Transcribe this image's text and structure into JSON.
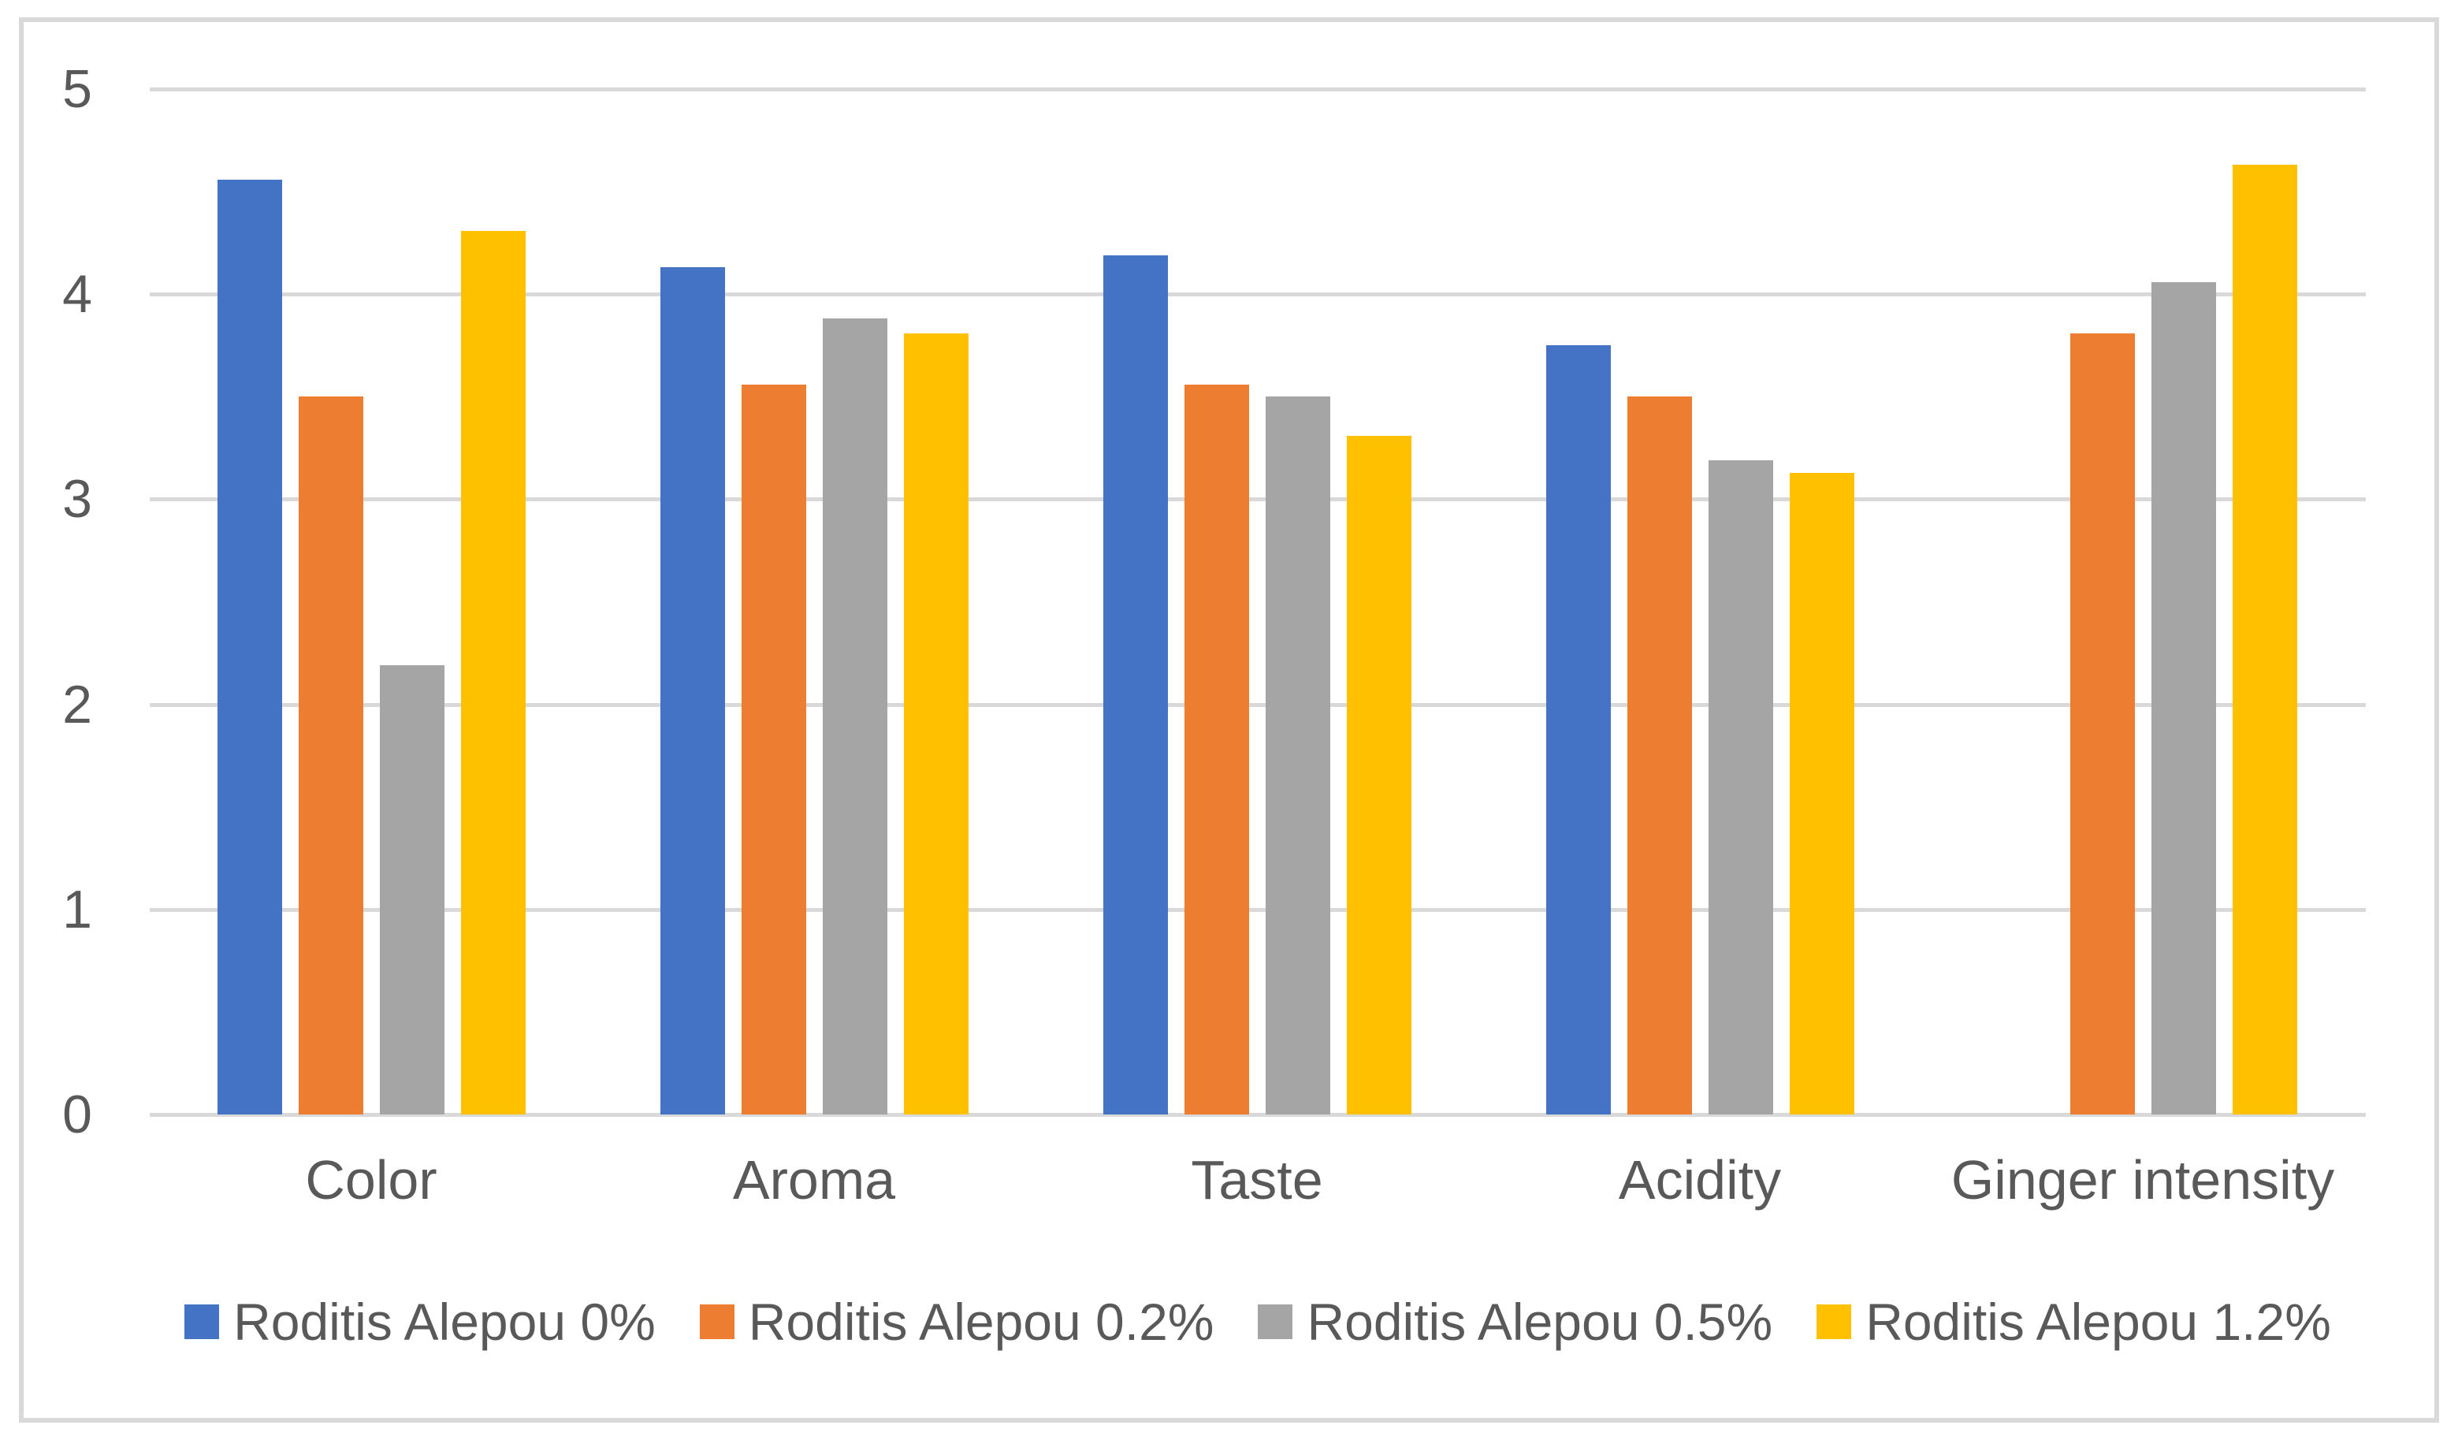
{
  "chart_data": {
    "type": "bar",
    "title": "",
    "xlabel": "",
    "ylabel": "",
    "ylim": [
      0,
      5
    ],
    "yticks": [
      0,
      1,
      2,
      3,
      4,
      5
    ],
    "grid": true,
    "legend_position": "bottom",
    "categories": [
      "Color",
      "Aroma",
      "Taste",
      "Acidity",
      "Ginger intensity"
    ],
    "series": [
      {
        "name": "Roditis Alepou 0%",
        "color": "#4472C4",
        "values": [
          4.56,
          4.13,
          4.19,
          3.75,
          0
        ]
      },
      {
        "name": "Roditis Alepou 0.2%",
        "color": "#ED7D31",
        "values": [
          3.5,
          3.56,
          3.56,
          3.5,
          3.81
        ]
      },
      {
        "name": "Roditis Alepou 0.5%",
        "color": "#A5A5A5",
        "values": [
          2.19,
          3.88,
          3.5,
          3.19,
          4.06
        ]
      },
      {
        "name": "Roditis Alepou 1.2%",
        "color": "#FFC000",
        "values": [
          4.31,
          3.81,
          3.31,
          3.13,
          4.63
        ]
      }
    ]
  },
  "style_colors": {
    "axis_text": "#595959",
    "gridline": "#D9D9D9",
    "frame_border": "#D9D9D9",
    "background": "#FFFFFF"
  }
}
